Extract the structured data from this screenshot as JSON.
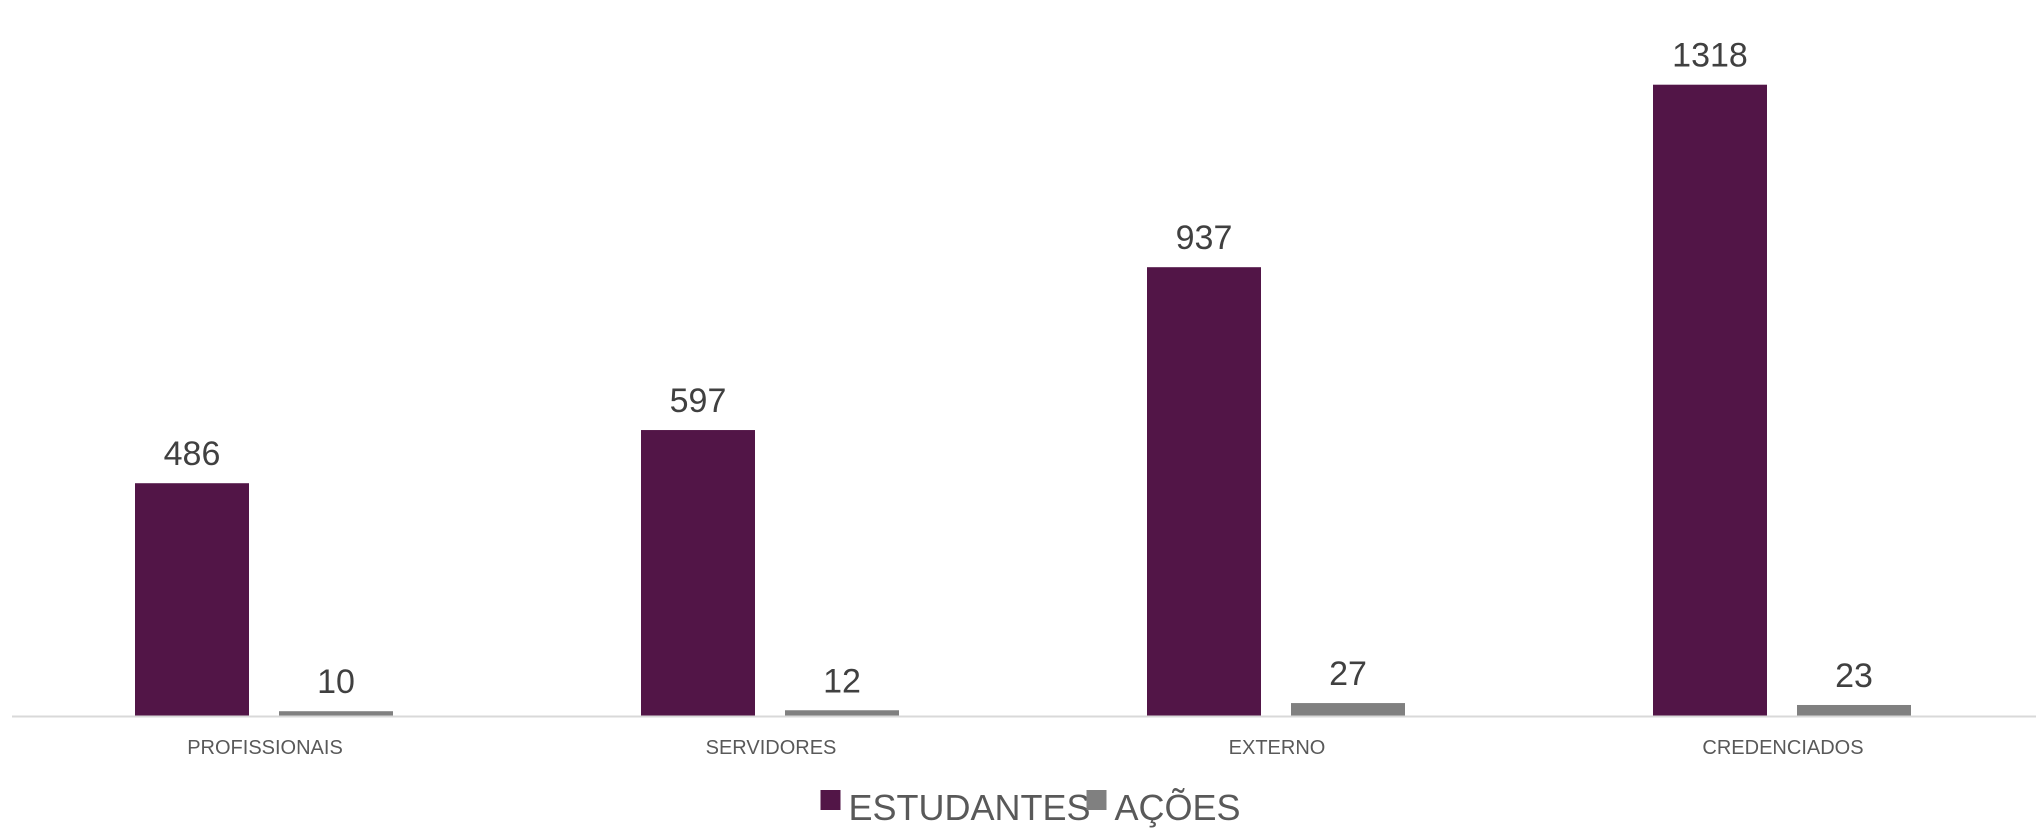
{
  "chart_data": {
    "type": "bar",
    "categories": [
      "PROFISSIONAIS",
      "SERVIDORES",
      "EXTERNO",
      "CREDENCIADOS"
    ],
    "series": [
      {
        "name": "ESTUDANTES",
        "values": [
          486,
          597,
          937,
          1318
        ],
        "color": "#521547"
      },
      {
        "name": "AÇÕES",
        "values": [
          10,
          12,
          27,
          23
        ],
        "color": "#808080"
      }
    ],
    "ylim": [
      0,
      1380
    ],
    "grid": false,
    "data_labels": true,
    "legend_position": "bottom-center",
    "axis_color": "#d9d9d9"
  }
}
